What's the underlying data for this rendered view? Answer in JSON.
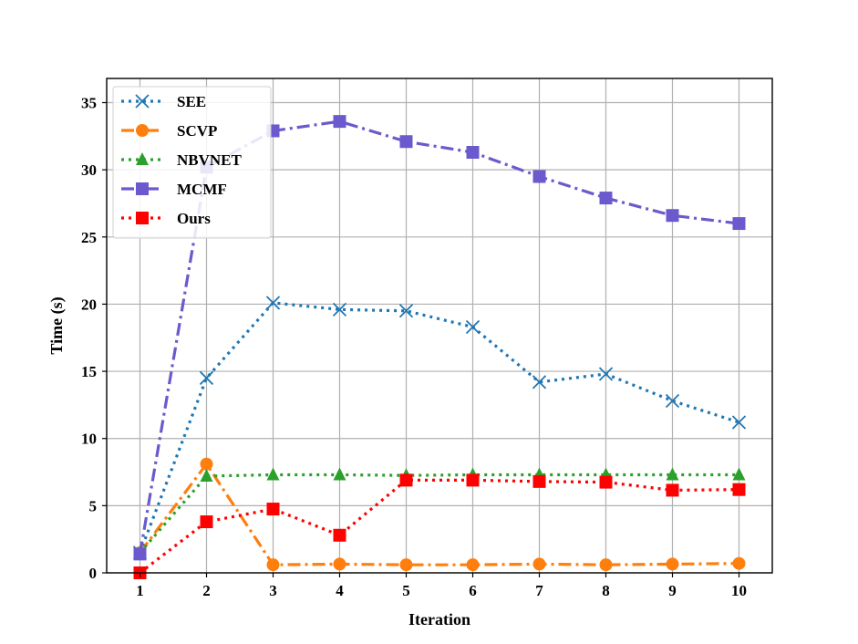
{
  "chart_data": {
    "type": "line",
    "title": "",
    "xlabel": "Iteration",
    "ylabel": "Time (s)",
    "x": [
      1,
      2,
      3,
      4,
      5,
      6,
      7,
      8,
      9,
      10
    ],
    "x_tick_labels": [
      "1",
      "2",
      "3",
      "4",
      "5",
      "6",
      "7",
      "8",
      "9",
      "10"
    ],
    "y_ticks": [
      0,
      5,
      10,
      15,
      20,
      25,
      30,
      35
    ],
    "y_tick_labels": [
      "0",
      "5",
      "10",
      "15",
      "20",
      "25",
      "30",
      "35"
    ],
    "xlim": [
      0.5,
      10.5
    ],
    "ylim": [
      0,
      36.8
    ],
    "grid": true,
    "legend_position": "top-left",
    "series": [
      {
        "name": "SEE",
        "color": "#1f77b4",
        "linestyle": "dotted",
        "marker": "x",
        "values": [
          1.5,
          14.5,
          20.1,
          19.6,
          19.5,
          18.3,
          14.2,
          14.8,
          12.8,
          11.2
        ]
      },
      {
        "name": "SCVP",
        "color": "#ff7f0e",
        "linestyle": "dashdot",
        "marker": "circle",
        "values": [
          1.5,
          8.1,
          0.6,
          0.65,
          0.6,
          0.6,
          0.65,
          0.6,
          0.65,
          0.7
        ]
      },
      {
        "name": "NBVNET",
        "color": "#2ca02c",
        "linestyle": "dotted",
        "marker": "triangle",
        "values": [
          1.5,
          7.2,
          7.3,
          7.3,
          7.25,
          7.3,
          7.3,
          7.3,
          7.3,
          7.3
        ]
      },
      {
        "name": "MCMF",
        "color": "#6a5acd",
        "linestyle": "dashdot",
        "marker": "square",
        "values": [
          1.4,
          30.2,
          32.9,
          33.6,
          32.1,
          31.3,
          29.5,
          27.9,
          26.6,
          26.0
        ]
      },
      {
        "name": "Ours",
        "color": "#ff0000",
        "linestyle": "dotted",
        "marker": "square",
        "values": [
          0.0,
          3.8,
          4.75,
          2.8,
          6.9,
          6.9,
          6.8,
          6.75,
          6.15,
          6.2
        ]
      }
    ]
  }
}
